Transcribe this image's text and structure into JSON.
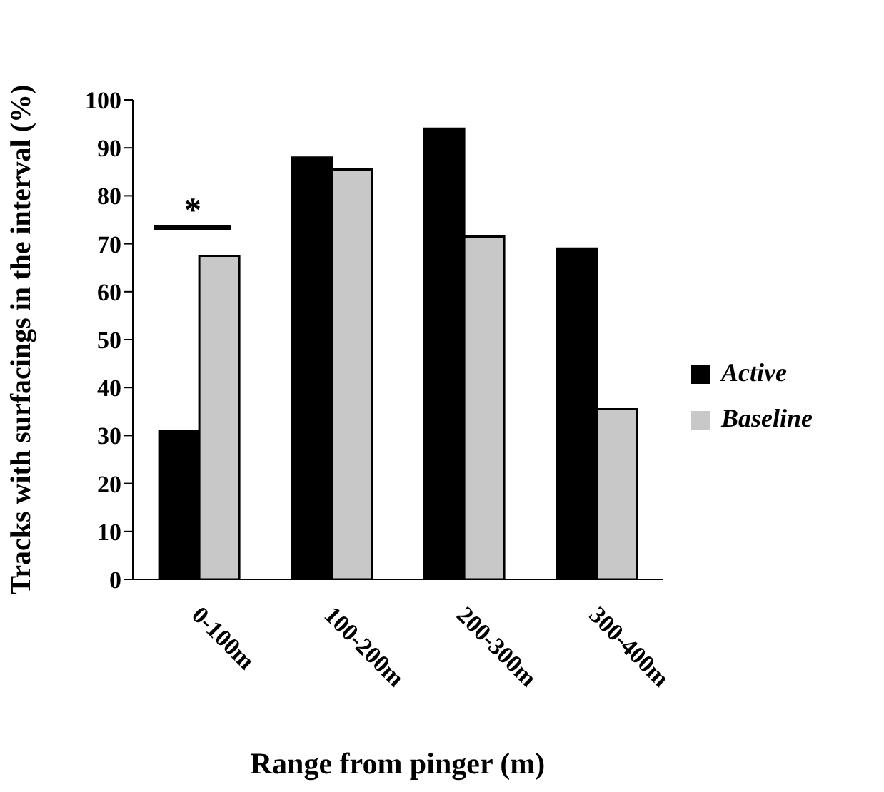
{
  "chart_data": {
    "type": "bar",
    "xlabel": "Range from pinger (m)",
    "ylabel": "Tracks with surfacings in the interval (%)",
    "categories": [
      "0-100m",
      "100-200m",
      "200-300m",
      "300-400m"
    ],
    "series": [
      {
        "name": "Active",
        "color": "#000000",
        "values": [
          31,
          88,
          94,
          69
        ]
      },
      {
        "name": "Baseline",
        "color": "#c8c8c8",
        "values": [
          67.5,
          85.5,
          71.5,
          35.5
        ]
      }
    ],
    "ylim": [
      0,
      100
    ],
    "yticks": [
      0,
      10,
      20,
      30,
      40,
      50,
      60,
      70,
      80,
      90,
      100
    ],
    "grid": false,
    "legend": "right",
    "annotations": [
      "*"
    ]
  }
}
